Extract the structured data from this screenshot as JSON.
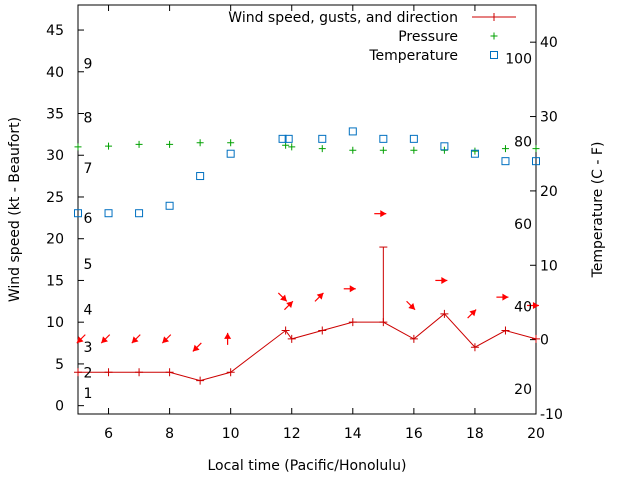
{
  "chart_data": {
    "type": "line",
    "xlabel": "Local time (Pacific/Honolulu)",
    "ylabel_left": "Wind speed (kt - Beaufort)",
    "ylabel_right": "Temperature (C - F)",
    "xlim": [
      5,
      20
    ],
    "ylim_left": [
      -1,
      48
    ],
    "ylim_right": [
      -10,
      45
    ],
    "x_ticks": [
      6,
      8,
      10,
      12,
      14,
      16,
      18,
      20
    ],
    "y_ticks_left": [
      0,
      5,
      10,
      15,
      20,
      25,
      30,
      35,
      40,
      45
    ],
    "y_ticks_right": [
      -10,
      0,
      10,
      20,
      30,
      40
    ],
    "beaufort_labels": [
      {
        "value": 1,
        "kt": 1.5
      },
      {
        "value": 2,
        "kt": 4
      },
      {
        "value": 3,
        "kt": 7
      },
      {
        "value": 4,
        "kt": 11.5
      },
      {
        "value": 5,
        "kt": 17
      },
      {
        "value": 6,
        "kt": 22.5
      },
      {
        "value": 7,
        "kt": 28.5
      },
      {
        "value": 8,
        "kt": 34.5
      },
      {
        "value": 9,
        "kt": 41
      }
    ],
    "fahrenheit_labels": [
      {
        "value": 20,
        "celsius": -6.67
      },
      {
        "value": 40,
        "celsius": 4.44
      },
      {
        "value": 60,
        "celsius": 15.56
      },
      {
        "value": 80,
        "celsius": 26.67
      },
      {
        "value": 100,
        "celsius": 37.78
      }
    ],
    "legend": [
      {
        "label": "Wind speed, gusts, and direction",
        "color": "#cc0000",
        "marker": "line-plus"
      },
      {
        "label": "Pressure",
        "color": "#00a000",
        "marker": "plus"
      },
      {
        "label": "Temperature",
        "color": "#0070c0",
        "marker": "square"
      }
    ],
    "colors": {
      "wind": "#cc0000",
      "arrow": "#ff0000",
      "pressure": "#00a000",
      "temperature": "#0070c0"
    },
    "wind_series": {
      "x": [
        5,
        6,
        7,
        8,
        9,
        10,
        11.8,
        12,
        13,
        14,
        15,
        16,
        17,
        18,
        19,
        20
      ],
      "speed": [
        4,
        4,
        4,
        4,
        3,
        4,
        9,
        8,
        9,
        10,
        10,
        8,
        11,
        7,
        9,
        8
      ]
    },
    "gusts": [
      {
        "x": 15,
        "low": 10,
        "high": 19
      }
    ],
    "wind_direction_arrows": [
      {
        "x": 5.1,
        "y": 8,
        "dir": "SW"
      },
      {
        "x": 5.9,
        "y": 8,
        "dir": "SW"
      },
      {
        "x": 6.9,
        "y": 8,
        "dir": "SW"
      },
      {
        "x": 7.9,
        "y": 8,
        "dir": "SW"
      },
      {
        "x": 8.9,
        "y": 7,
        "dir": "SW"
      },
      {
        "x": 9.9,
        "y": 8,
        "dir": "N"
      },
      {
        "x": 11.7,
        "y": 13,
        "dir": "SE"
      },
      {
        "x": 11.9,
        "y": 12,
        "dir": "NE"
      },
      {
        "x": 12.9,
        "y": 13,
        "dir": "NE"
      },
      {
        "x": 13.9,
        "y": 14,
        "dir": "E"
      },
      {
        "x": 14.9,
        "y": 23,
        "dir": "E"
      },
      {
        "x": 15.9,
        "y": 12,
        "dir": "SE"
      },
      {
        "x": 16.9,
        "y": 15,
        "dir": "E"
      },
      {
        "x": 17.9,
        "y": 11,
        "dir": "NE"
      },
      {
        "x": 18.9,
        "y": 13,
        "dir": "E"
      },
      {
        "x": 19.9,
        "y": 12,
        "dir": "E"
      }
    ],
    "pressure_series": {
      "x": [
        5,
        6,
        7,
        8,
        9,
        10,
        11.8,
        12,
        13,
        14,
        15,
        16,
        17,
        18,
        19,
        20
      ],
      "y": [
        31,
        31.1,
        31.3,
        31.3,
        31.5,
        31.5,
        31.2,
        31,
        30.8,
        30.6,
        30.6,
        30.6,
        30.6,
        30.5,
        30.8,
        30.8
      ]
    },
    "temperature_series": {
      "x": [
        5,
        6,
        7,
        8,
        9,
        10,
        11.7,
        11.9,
        13,
        14,
        15,
        16,
        17,
        18,
        19,
        20
      ],
      "celsius": [
        17,
        17,
        17,
        18,
        22,
        25,
        27,
        27,
        27,
        28,
        27,
        27,
        26,
        25,
        24,
        24
      ]
    }
  }
}
